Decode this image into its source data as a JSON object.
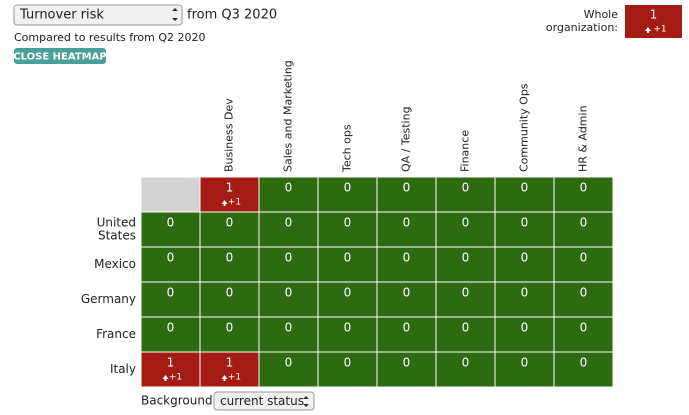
{
  "header": {
    "select": "Turnover risk",
    "period": "from Q3 2020",
    "compared": "Compared to results from Q2 2020",
    "button": "CLOSE HEATMAP",
    "whole_label": [
      "Whole",
      "organization:"
    ],
    "whole_value": 1,
    "whole_change": "+1"
  },
  "heatmap": {
    "columns": [
      "Business Dev",
      "Sales and Marketing",
      "Tech ops",
      "QA / Testing",
      "Finance",
      "Community Ops",
      "HR & Admin"
    ],
    "rows": [
      {
        "label": null,
        "cells": [
          null,
          {
            "value": 1,
            "change": "+1"
          },
          {
            "value": 0
          },
          {
            "value": 0
          },
          {
            "value": 0
          },
          {
            "value": 0
          },
          {
            "value": 0
          },
          {
            "value": 0
          }
        ]
      },
      {
        "label": [
          "United",
          "States"
        ],
        "cells": [
          {
            "value": 0
          },
          {
            "value": 0
          },
          {
            "value": 0
          },
          {
            "value": 0
          },
          {
            "value": 0
          },
          {
            "value": 0
          },
          {
            "value": 0
          },
          {
            "value": 0
          }
        ]
      },
      {
        "label": [
          "Mexico"
        ],
        "cells": [
          {
            "value": 0
          },
          {
            "value": 0
          },
          {
            "value": 0
          },
          {
            "value": 0
          },
          {
            "value": 0
          },
          {
            "value": 0
          },
          {
            "value": 0
          },
          {
            "value": 0
          }
        ]
      },
      {
        "label": [
          "Germany"
        ],
        "cells": [
          {
            "value": 0
          },
          {
            "value": 0
          },
          {
            "value": 0
          },
          {
            "value": 0
          },
          {
            "value": 0
          },
          {
            "value": 0
          },
          {
            "value": 0
          },
          {
            "value": 0
          }
        ]
      },
      {
        "label": [
          "France"
        ],
        "cells": [
          {
            "value": 0
          },
          {
            "value": 0
          },
          {
            "value": 0
          },
          {
            "value": 0
          },
          {
            "value": 0
          },
          {
            "value": 0
          },
          {
            "value": 0
          },
          {
            "value": 0
          }
        ]
      },
      {
        "label": [
          "Italy"
        ],
        "cells": [
          {
            "value": 1,
            "change": "+1"
          },
          {
            "value": 1,
            "change": "+1"
          },
          {
            "value": 0
          },
          {
            "value": 0
          },
          {
            "value": 0
          },
          {
            "value": 0
          },
          {
            "value": 0
          },
          {
            "value": 0
          }
        ]
      }
    ]
  },
  "footer": {
    "label": "Background is",
    "select": "current status"
  }
}
